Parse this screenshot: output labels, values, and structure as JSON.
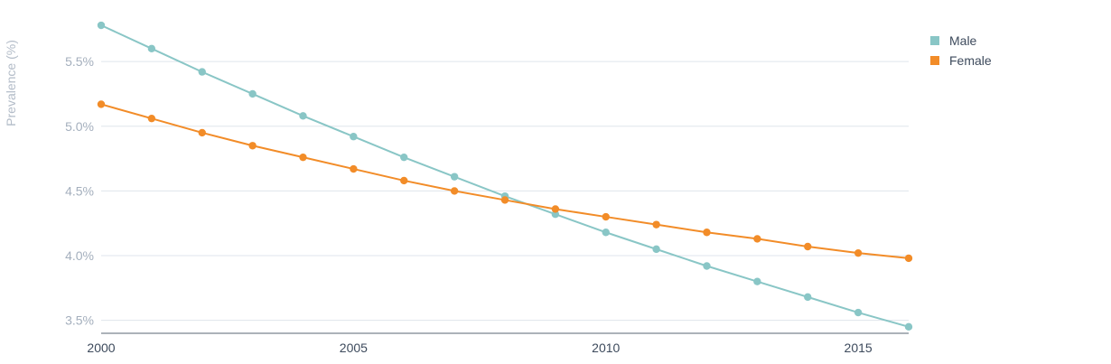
{
  "chart_data": {
    "type": "line",
    "ylabel": "Prevalence (%)",
    "xlabel": "",
    "x": [
      2000,
      2001,
      2002,
      2003,
      2004,
      2005,
      2006,
      2007,
      2008,
      2009,
      2010,
      2011,
      2012,
      2013,
      2014,
      2015,
      2016
    ],
    "x_ticks": [
      "2000",
      "2005",
      "2010",
      "2015"
    ],
    "y_ticks": [
      "3.5%",
      "4.0%",
      "4.5%",
      "5.0%",
      "5.5%"
    ],
    "y_tick_values": [
      3.5,
      4.0,
      4.5,
      5.0,
      5.5
    ],
    "xlim": [
      2000,
      2016
    ],
    "ylim": [
      3.4,
      5.85
    ],
    "grid": "horizontal",
    "legend_position": "top-right",
    "series": [
      {
        "name": "Male",
        "color": "#89c6c6",
        "values": [
          5.78,
          5.6,
          5.42,
          5.25,
          5.08,
          4.92,
          4.76,
          4.61,
          4.46,
          4.32,
          4.18,
          4.05,
          3.92,
          3.8,
          3.68,
          3.56,
          3.45
        ]
      },
      {
        "name": "Female",
        "color": "#f28c28",
        "values": [
          5.17,
          5.06,
          4.95,
          4.85,
          4.76,
          4.67,
          4.58,
          4.5,
          4.43,
          4.36,
          4.3,
          4.24,
          4.18,
          4.13,
          4.07,
          4.02,
          3.98
        ]
      }
    ]
  }
}
